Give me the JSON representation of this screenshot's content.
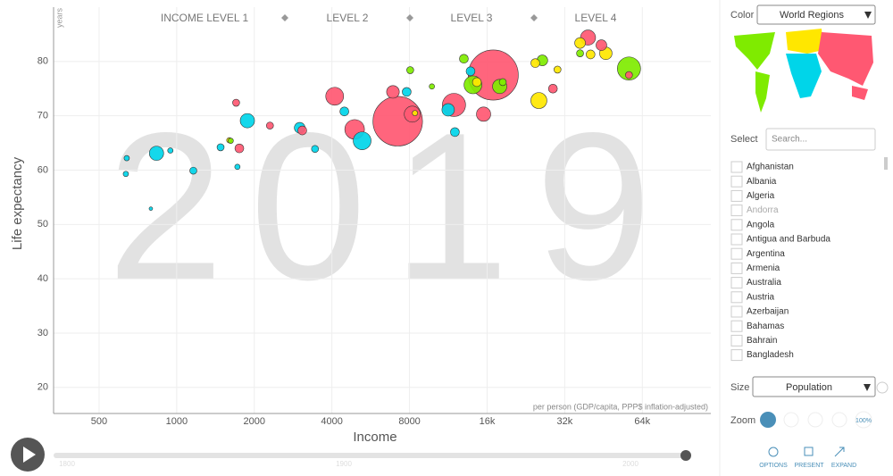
{
  "chart_data": {
    "type": "bubble",
    "year": 2019,
    "y_unit": "years",
    "ylabel": "Life expectancy",
    "xlabel": "Income",
    "x_note": "per person (GDP/capita, PPP$ inflation-adjusted)",
    "log_x": true,
    "grid": true,
    "levels": [
      "INCOME LEVEL 1",
      "LEVEL 2",
      "LEVEL 3",
      "LEVEL 4"
    ],
    "xlim": [
      333,
      118000
    ],
    "ylim": [
      15.2,
      90
    ],
    "xticks": [
      500,
      1000,
      2000,
      4000,
      8000,
      {
        "value": 16000,
        "label": "16k"
      },
      {
        "value": 32000,
        "label": "32k"
      },
      {
        "value": 64000,
        "label": "64k"
      }
    ],
    "yticks": [
      20,
      30,
      40,
      50,
      60,
      70,
      80
    ],
    "series": [
      {
        "color": "#ff5872",
        "x": [
          16900,
          7200,
          4100,
          4900,
          11900,
          39400,
          6900,
          8200,
          1700,
          1750,
          2300,
          28800,
          56800,
          3070,
          15500,
          44400
        ],
        "values": [
          77.5,
          69,
          73.6,
          67.5,
          72,
          84.4,
          74.4,
          70.3,
          72.4,
          64,
          68.2,
          75,
          77.5,
          67.3,
          70.3,
          83
        ],
        "sizes": [
          1400,
          1370,
          178,
          215,
          300,
          127,
          90,
          144,
          28,
          44,
          28,
          44,
          28,
          44,
          114,
          64
        ]
      },
      {
        "color": "#00d5e9",
        "x": [
          835,
          1880,
          5240,
          11300,
          3000,
          640,
          1160,
          635,
          794,
          4470,
          3440,
          12000,
          13800,
          1480,
          1720,
          7800,
          945
        ],
        "values": [
          63.1,
          69.1,
          65.4,
          71.1,
          67.8,
          62.2,
          59.9,
          59.3,
          52.9,
          70.8,
          63.9,
          67,
          78.2,
          64.2,
          60.6,
          74.4,
          63.6
        ],
        "sizes": [
          114,
          114,
          178,
          87,
          64,
          16,
          28,
          16,
          7,
          44,
          28,
          44,
          44,
          28,
          16,
          44,
          16
        ]
      },
      {
        "color": "#ffe700",
        "x": [
          25400,
          36700,
          46200,
          24600,
          14600,
          30000,
          40300,
          1600,
          8400
        ],
        "values": [
          72.8,
          83.4,
          81.5,
          79.7,
          76.2,
          78.5,
          81.3,
          65.5,
          70.5
        ],
        "sizes": [
          144,
          64,
          87,
          44,
          44,
          28,
          44,
          16,
          16
        ]
      },
      {
        "color": "#7feb00",
        "x": [
          56800,
          14100,
          17900,
          13000,
          26200,
          8050,
          9770,
          36700,
          18400,
          1620
        ],
        "values": [
          78.7,
          75.7,
          75.4,
          80.5,
          80.2,
          78.4,
          75.4,
          81.5,
          76.2,
          65.4
        ],
        "sizes": [
          300,
          178,
          114,
          44,
          64,
          28,
          16,
          28,
          28,
          16
        ]
      }
    ]
  },
  "timeline": {
    "labels": [
      "1800",
      "1900",
      "2000"
    ]
  },
  "sidebar": {
    "color_label": "Color",
    "color_value": "World Regions",
    "select_label": "Select",
    "search_placeholder": "Search...",
    "countries": [
      "Afghanistan",
      "Albania",
      "Algeria",
      "Andorra",
      "Angola",
      "Antigua and Barbuda",
      "Argentina",
      "Armenia",
      "Australia",
      "Austria",
      "Azerbaijan",
      "Bahamas",
      "Bahrain",
      "Bangladesh"
    ],
    "size_label": "Size",
    "size_value": "Population",
    "zoom_label": "Zoom",
    "zoom_full": "100%",
    "buttons": [
      "OPTIONS",
      "PRESENT",
      "EXPAND"
    ]
  }
}
